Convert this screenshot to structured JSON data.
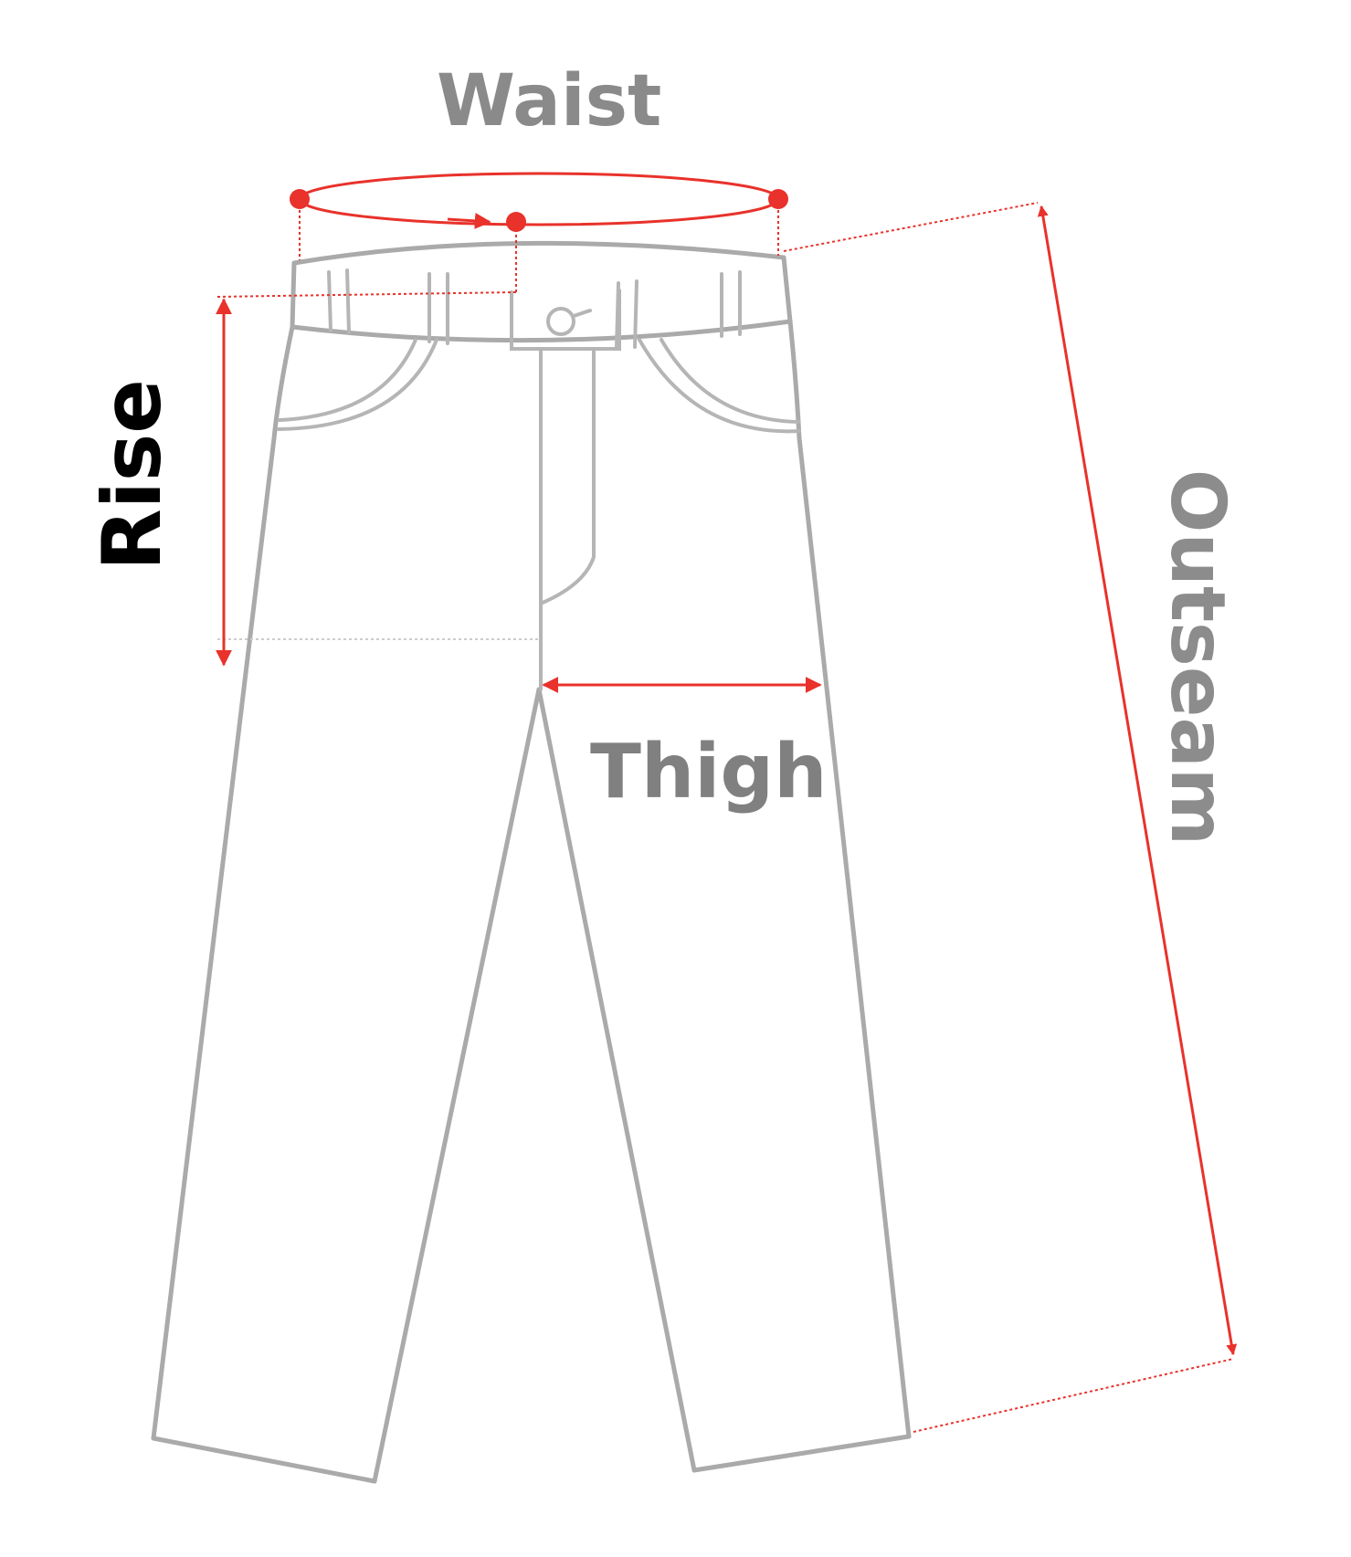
{
  "labels": {
    "waist": "Waist",
    "rise": "Rise",
    "thigh": "Thigh",
    "outseam": "Outseam"
  },
  "colors": {
    "measure_red": "#e8322b",
    "waist_label": "#8a8a8a",
    "thigh_label": "#808080",
    "outseam_label": "#8c8c8c",
    "rise_label": "#000000",
    "outline": "#aaaaaa"
  }
}
